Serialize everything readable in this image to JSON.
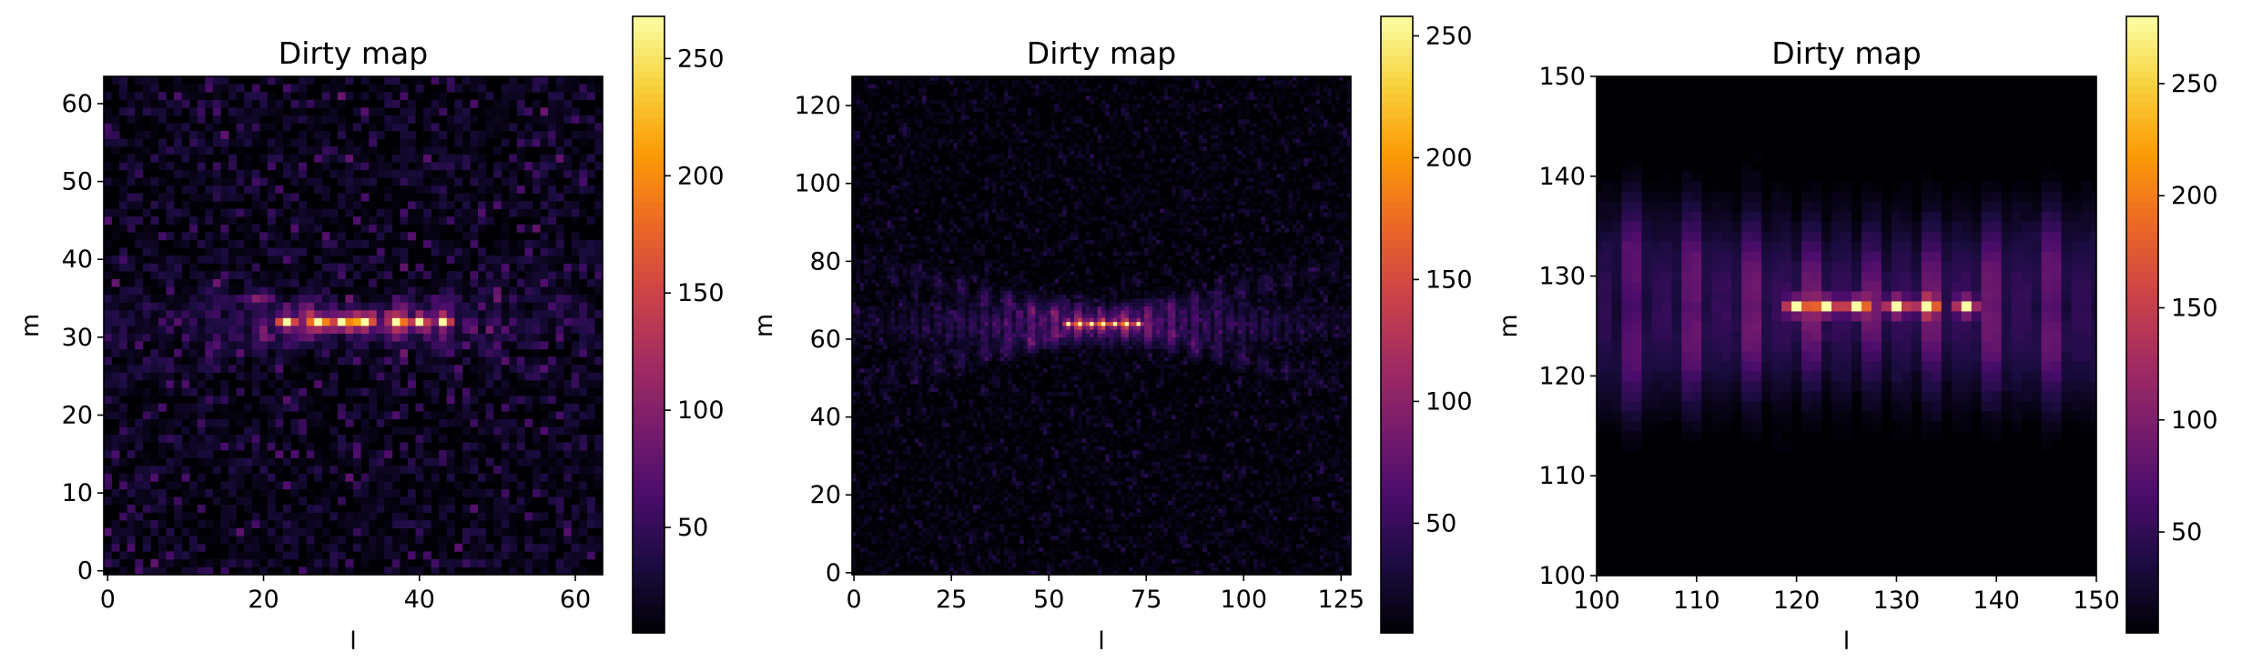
{
  "colors": {
    "colormap": "inferno",
    "stops": [
      "#000004",
      "#1b0c41",
      "#4a0c6b",
      "#781c6d",
      "#a52c60",
      "#cf4446",
      "#ed6925",
      "#fb9b06",
      "#f7d13d",
      "#fcffa4"
    ]
  },
  "chart_data": [
    {
      "type": "heatmap",
      "title": "Dirty map",
      "xlabel": "l",
      "ylabel": "m",
      "grid_size": 64,
      "xlim": [
        -0.5,
        63.5
      ],
      "ylim": [
        63.5,
        -0.5
      ],
      "xticks": [
        0,
        20,
        40,
        60
      ],
      "yticks": [
        0,
        10,
        20,
        30,
        40,
        50,
        60
      ],
      "colorbar": {
        "range": [
          5,
          268
        ],
        "ticks": [
          50,
          100,
          150,
          200,
          250
        ]
      },
      "source": {
        "center_m": 32,
        "center_l": 31.5,
        "peak_cols": [
          23,
          27,
          30,
          33,
          37,
          40,
          43
        ],
        "peak_value": 268,
        "background_max": 85
      }
    },
    {
      "type": "heatmap",
      "title": "Dirty map",
      "xlabel": "l",
      "ylabel": "m",
      "grid_size": 128,
      "xlim": [
        -0.5,
        127.5
      ],
      "ylim": [
        127.5,
        -0.5
      ],
      "xticks": [
        0,
        25,
        50,
        75,
        100,
        125
      ],
      "yticks": [
        0,
        20,
        40,
        60,
        80,
        100,
        120
      ],
      "colorbar": {
        "range": [
          5,
          258
        ],
        "ticks": [
          50,
          100,
          150,
          200,
          250
        ]
      },
      "source": {
        "center_m": 64,
        "center_l": 63.5,
        "peak_cols": [
          55,
          58,
          61,
          64,
          67,
          70,
          73
        ],
        "peak_value": 258,
        "background_max": 45
      }
    },
    {
      "type": "heatmap",
      "title": "Dirty map",
      "xlabel": "l",
      "ylabel": "m",
      "xlim": [
        100,
        150
      ],
      "ylim": [
        150,
        100
      ],
      "xticks": [
        100,
        110,
        120,
        130,
        140,
        150
      ],
      "yticks": [
        100,
        110,
        120,
        130,
        140,
        150
      ],
      "colorbar": {
        "range": [
          5,
          280
        ],
        "ticks": [
          50,
          100,
          150,
          200,
          250
        ]
      },
      "source": {
        "center_m": 127,
        "center_l": 127.5,
        "peak_cols": [
          120,
          123,
          126,
          130,
          133,
          137
        ],
        "peak_value": 280,
        "background_max": 8
      }
    }
  ]
}
